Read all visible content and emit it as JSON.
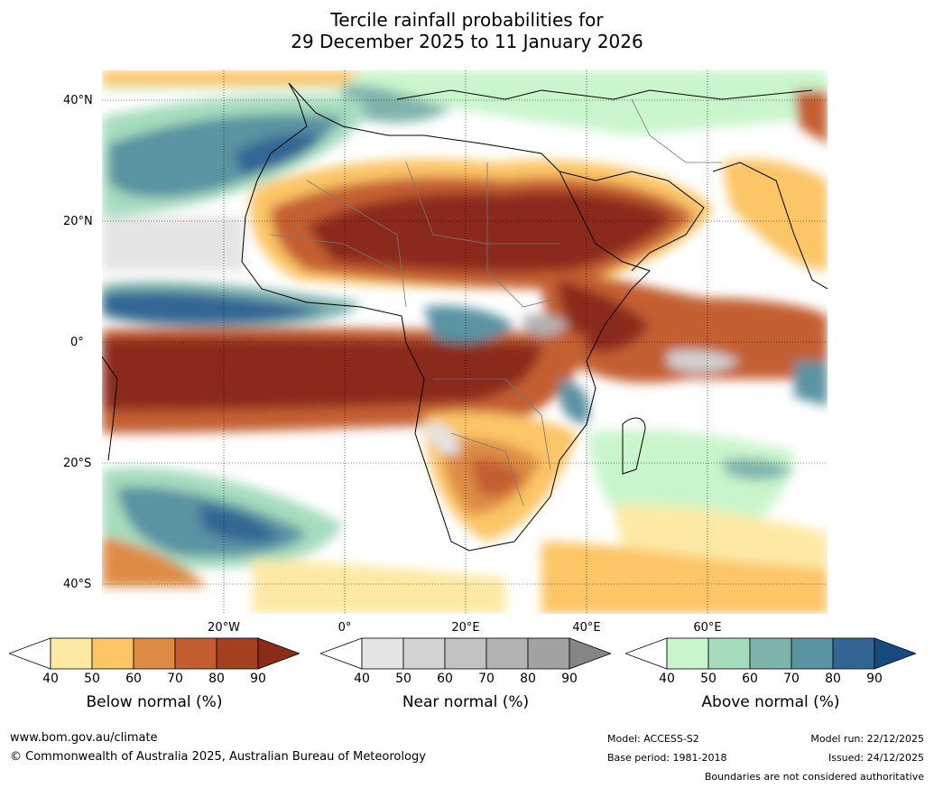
{
  "title": {
    "line1": "Tercile rainfall probabilities for",
    "line2": "29 December 2025 to 11 January 2026"
  },
  "map": {
    "lat_labels": [
      "40°N",
      "20°N",
      "0°",
      "20°S",
      "40°S"
    ],
    "lon_labels": [
      "20°W",
      "0°",
      "20°E",
      "40°E",
      "60°E"
    ]
  },
  "legends": [
    {
      "title": "Below normal (%)",
      "ticks": [
        "40",
        "50",
        "60",
        "70",
        "80",
        "90"
      ],
      "colors": [
        "#ffffff",
        "#fde9a4",
        "#fcc566",
        "#de8c45",
        "#c45e30",
        "#a3401f",
        "#8b2c1a"
      ]
    },
    {
      "title": "Near normal (%)",
      "ticks": [
        "40",
        "50",
        "60",
        "70",
        "80",
        "90"
      ],
      "colors": [
        "#ffffff",
        "#e4e4e4",
        "#d2d2d2",
        "#c2c2c2",
        "#b2b2b2",
        "#a2a2a2",
        "#858585"
      ]
    },
    {
      "title": "Above normal (%)",
      "ticks": [
        "40",
        "50",
        "60",
        "70",
        "80",
        "90"
      ],
      "colors": [
        "#ffffff",
        "#c9f5cc",
        "#a6dcbe",
        "#7fb4ad",
        "#5a93a2",
        "#336694",
        "#174b7e"
      ]
    }
  ],
  "footer": {
    "url": "www.bom.gov.au/climate",
    "copyright": "© Commonwealth of Australia 2025, Australian Bureau of Meteorology",
    "model": "Model: ACCESS-S2",
    "base_period": "Base period: 1981-2018",
    "model_run": "Model run: 22/12/2025",
    "issued": "Issued: 24/12/2025",
    "disclaimer": "Boundaries are not considered authoritative"
  }
}
